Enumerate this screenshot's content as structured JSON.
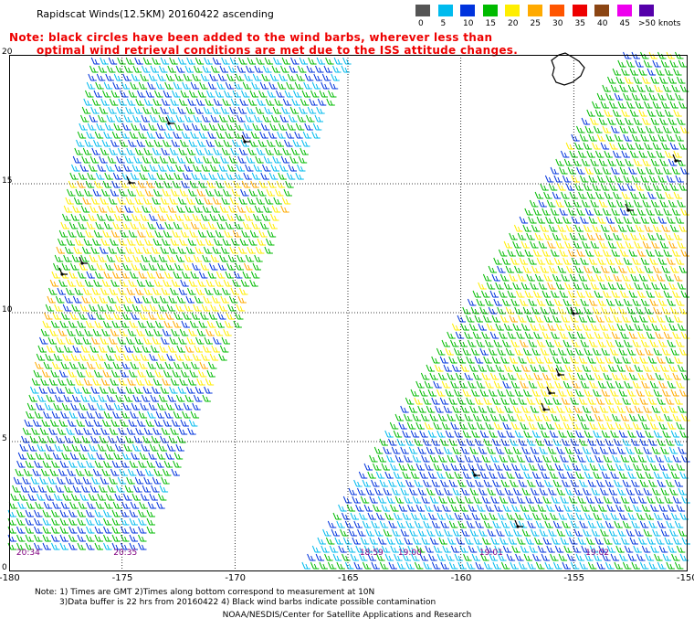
{
  "title": "Rapidscat Winds(12.5KM) 20160422 ascending",
  "note": {
    "line1": "Note: black circles have been added to the wind barbs, wherever less than",
    "line2": "optimal wind retrieval conditions are met due to the ISS attitude changes."
  },
  "legend": {
    "items": [
      {
        "label": "0",
        "color": "#555555"
      },
      {
        "label": "5",
        "color": "#00bbee"
      },
      {
        "label": "10",
        "color": "#0033dd"
      },
      {
        "label": "15",
        "color": "#00bb00"
      },
      {
        "label": "20",
        "color": "#ffee00"
      },
      {
        "label": "25",
        "color": "#ffaa00"
      },
      {
        "label": "30",
        "color": "#ff5500"
      },
      {
        "label": "35",
        "color": "#ee0000"
      },
      {
        "label": "40",
        "color": "#8b4513"
      },
      {
        "label": "45",
        "color": "#ee00ee"
      },
      {
        "label": ">50 knots",
        "color": "#5500aa"
      }
    ]
  },
  "axes": {
    "lon_ticks": [
      "-180",
      "-175",
      "-170",
      "-165",
      "-160",
      "-155",
      "-150"
    ],
    "lat_ticks": [
      "20",
      "15",
      "10",
      "5",
      "0"
    ],
    "lon_range": [
      -180,
      -150
    ],
    "lat_range": [
      0,
      20
    ]
  },
  "times": [
    {
      "label": "20:34",
      "lon": -179.6
    },
    {
      "label": "20:35",
      "lon": -175.3
    },
    {
      "label": "18:59",
      "lon": -164.4
    },
    {
      "label": "19:00",
      "lon": -162.7
    },
    {
      "label": "19:01",
      "lon": -159.1
    },
    {
      "label": "19:02",
      "lon": -154.4
    }
  ],
  "footer": {
    "line1": "Note: 1) Times are GMT 2)Times along bottom correspond to measurement at 10N",
    "line2": "3)Data buffer is 22 hrs from 20160422 4) Black wind barbs indicate possible contamination",
    "credit": "NOAA/NESDIS/Center for Satellite Applications and Research"
  }
}
